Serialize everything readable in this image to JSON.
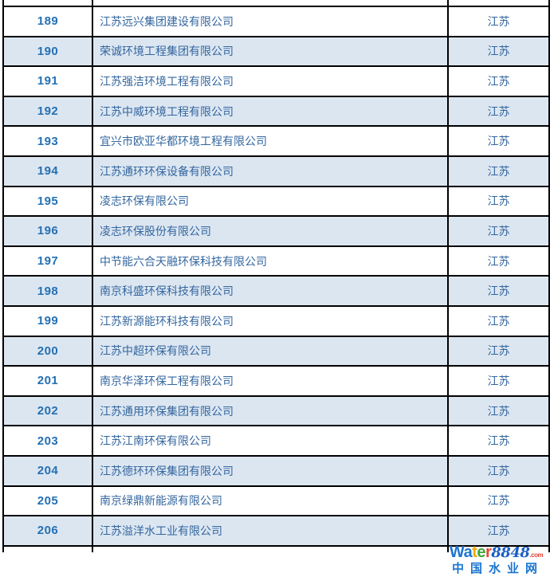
{
  "table": {
    "province_column_note": "province",
    "rows": [
      {
        "no": "189",
        "company": "江苏远兴集团建设有限公司",
        "province": "江苏"
      },
      {
        "no": "190",
        "company": "荣诚环境工程集团有限公司",
        "province": "江苏"
      },
      {
        "no": "191",
        "company": "江苏强洁环境工程有限公司",
        "province": "江苏"
      },
      {
        "no": "192",
        "company": "江苏中威环境工程有限公司",
        "province": "江苏"
      },
      {
        "no": "193",
        "company": "宜兴市欧亚华都环境工程有限公司",
        "province": "江苏"
      },
      {
        "no": "194",
        "company": "江苏通环环保设备有限公司",
        "province": "江苏"
      },
      {
        "no": "195",
        "company": "凌志环保有限公司",
        "province": "江苏"
      },
      {
        "no": "196",
        "company": "凌志环保股份有限公司",
        "province": "江苏"
      },
      {
        "no": "197",
        "company": "中节能六合天融环保科技有限公司",
        "province": "江苏"
      },
      {
        "no": "198",
        "company": "南京科盛环保科技有限公司",
        "province": "江苏"
      },
      {
        "no": "199",
        "company": "江苏新源能环科技有限公司",
        "province": "江苏"
      },
      {
        "no": "200",
        "company": "江苏中超环保有限公司",
        "province": "江苏"
      },
      {
        "no": "201",
        "company": "南京华泽环保工程有限公司",
        "province": "江苏"
      },
      {
        "no": "202",
        "company": "江苏通用环保集团有限公司",
        "province": "江苏"
      },
      {
        "no": "203",
        "company": "江苏江南环保有限公司",
        "province": "江苏"
      },
      {
        "no": "204",
        "company": "江苏德环环保集团有限公司",
        "province": "江苏"
      },
      {
        "no": "205",
        "company": "南京绿鼎新能源有限公司",
        "province": "江苏"
      },
      {
        "no": "206",
        "company": "江苏溢洋水工业有限公司",
        "province": "江苏"
      }
    ]
  },
  "watermark": {
    "brand_letters": [
      {
        "ch": "W",
        "color": "#1b75cf"
      },
      {
        "ch": "a",
        "color": "#1b75cf"
      },
      {
        "ch": "t",
        "color": "#f4a801"
      },
      {
        "ch": "e",
        "color": "#3fa535"
      },
      {
        "ch": "r",
        "color": "#e6453a"
      }
    ],
    "number": "8848",
    "number_color": "#1b5fc4",
    "dotcom": ".com",
    "dotcom_color": "#e6453a",
    "line2": "中国水业网",
    "line2_color": "#1b75cf"
  },
  "colors": {
    "row_base": "#ffffff",
    "row_alt": "#dce6f1",
    "grid_border": "#000000",
    "number_text": "#2470b3",
    "cjk_text": "#33669e"
  }
}
